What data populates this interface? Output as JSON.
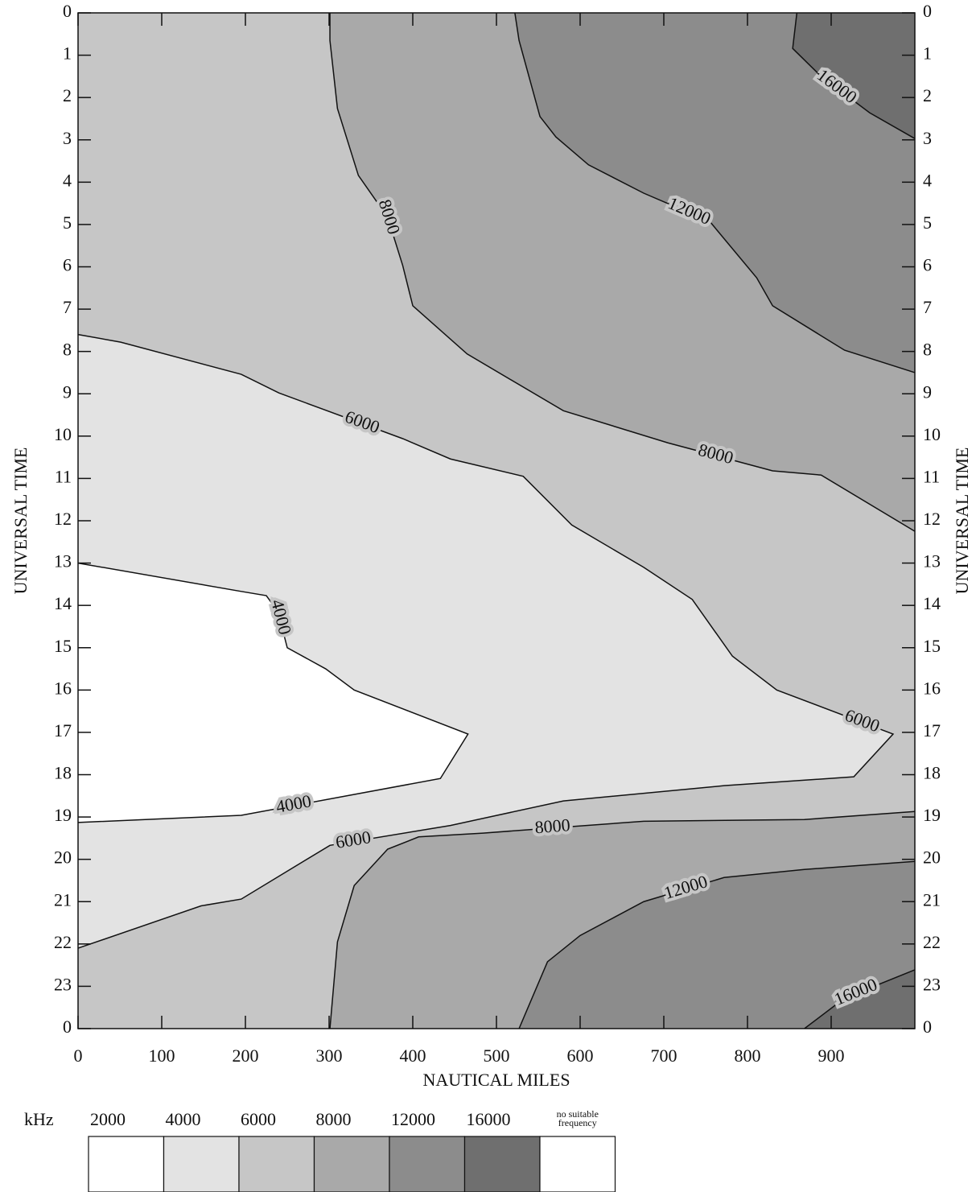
{
  "chart_data": {
    "type": "contour",
    "x_label": "NAUTICAL MILES",
    "y_label": "UNIVERSAL TIME",
    "xlim": [
      0,
      1000
    ],
    "ylim": [
      0,
      24
    ],
    "xticks": [
      0,
      100,
      200,
      300,
      400,
      500,
      600,
      700,
      800,
      900
    ],
    "yticks": [
      0,
      1,
      2,
      3,
      4,
      5,
      6,
      7,
      8,
      9,
      10,
      11,
      12,
      13,
      14,
      15,
      16,
      17,
      18,
      19,
      20,
      21,
      22,
      23,
      {
        "value": 24,
        "label": "0"
      }
    ],
    "y_inverted": true,
    "plot_color": "#c6c6c6",
    "contours": [
      {
        "level": 6000,
        "fill_color": "#e3e3e3",
        "x": [
          0,
          51,
          195,
          240,
          388,
          445,
          532,
          590,
          676,
          734,
          782,
          835,
          974,
          927,
          772,
          580,
          445,
          301,
          195,
          147,
          0
        ],
        "y": [
          7.6,
          7.78,
          8.54,
          8.98,
          10.06,
          10.54,
          10.95,
          12.1,
          13.1,
          13.86,
          15.2,
          16.0,
          17.04,
          18.05,
          18.26,
          18.62,
          19.2,
          19.67,
          20.94,
          21.1,
          22.1
        ]
      },
      {
        "level": 4000,
        "fill_color": "#ffffff",
        "x": [
          0,
          195,
          225,
          239,
          250,
          296,
          330,
          466,
          433,
          195,
          0
        ],
        "y": [
          13,
          13.67,
          13.77,
          14.15,
          15,
          15.5,
          16,
          17.04,
          18.09,
          18.96,
          19.13
        ]
      },
      {
        "level": 8000,
        "fill_color": "#a9a9a9",
        "x": [
          301,
          301,
          310,
          335,
          370,
          388,
          400,
          465,
          580,
          705,
          830,
          888,
          1000
        ],
        "y": [
          0,
          0.65,
          2.26,
          3.84,
          4.83,
          5.97,
          6.92,
          8.06,
          9.4,
          10.16,
          10.82,
          10.92,
          12.25
        ]
      },
      {
        "level": 12000,
        "fill_color": "#8c8c8c",
        "x": [
          522,
          527,
          552,
          571,
          610,
          676,
          755,
          811,
          830,
          916,
          1000
        ],
        "y": [
          0,
          0.65,
          2.45,
          2.93,
          3.59,
          4.26,
          4.93,
          6.26,
          6.92,
          7.97,
          8.5
        ]
      },
      {
        "level": 16000,
        "fill_color": "#6f6f6f",
        "x": [
          859,
          854,
          888,
          946,
          1000
        ],
        "y": [
          0,
          0.84,
          1.5,
          2.36,
          2.97
        ]
      },
      {
        "level": 8000,
        "fill_color": "#a9a9a9",
        "x": [
          1000,
          868,
          676,
          484,
          407,
          370,
          330,
          310,
          301
        ],
        "y": [
          18.87,
          19.06,
          19.1,
          19.38,
          19.47,
          19.76,
          20.62,
          21.95,
          24
        ]
      },
      {
        "level": 12000,
        "fill_color": "#8c8c8c",
        "x": [
          1000,
          868,
          772,
          676,
          600,
          561,
          527
        ],
        "y": [
          20.05,
          20.24,
          20.43,
          21.0,
          21.8,
          22.42,
          24
        ]
      },
      {
        "level": 16000,
        "fill_color": "#6f6f6f",
        "x": [
          1000,
          916,
          868
        ],
        "y": [
          22.61,
          23.28,
          24
        ]
      }
    ],
    "legend": {
      "unit": "kHz",
      "levels": [
        2000,
        4000,
        6000,
        8000,
        12000,
        16000
      ],
      "colors": [
        "#ffffff",
        "#e3e3e3",
        "#c6c6c6",
        "#a9a9a9",
        "#8c8c8c",
        "#6f6f6f"
      ],
      "note": [
        "no suitable",
        "frequency"
      ],
      "note_color": "#ffffff"
    }
  }
}
